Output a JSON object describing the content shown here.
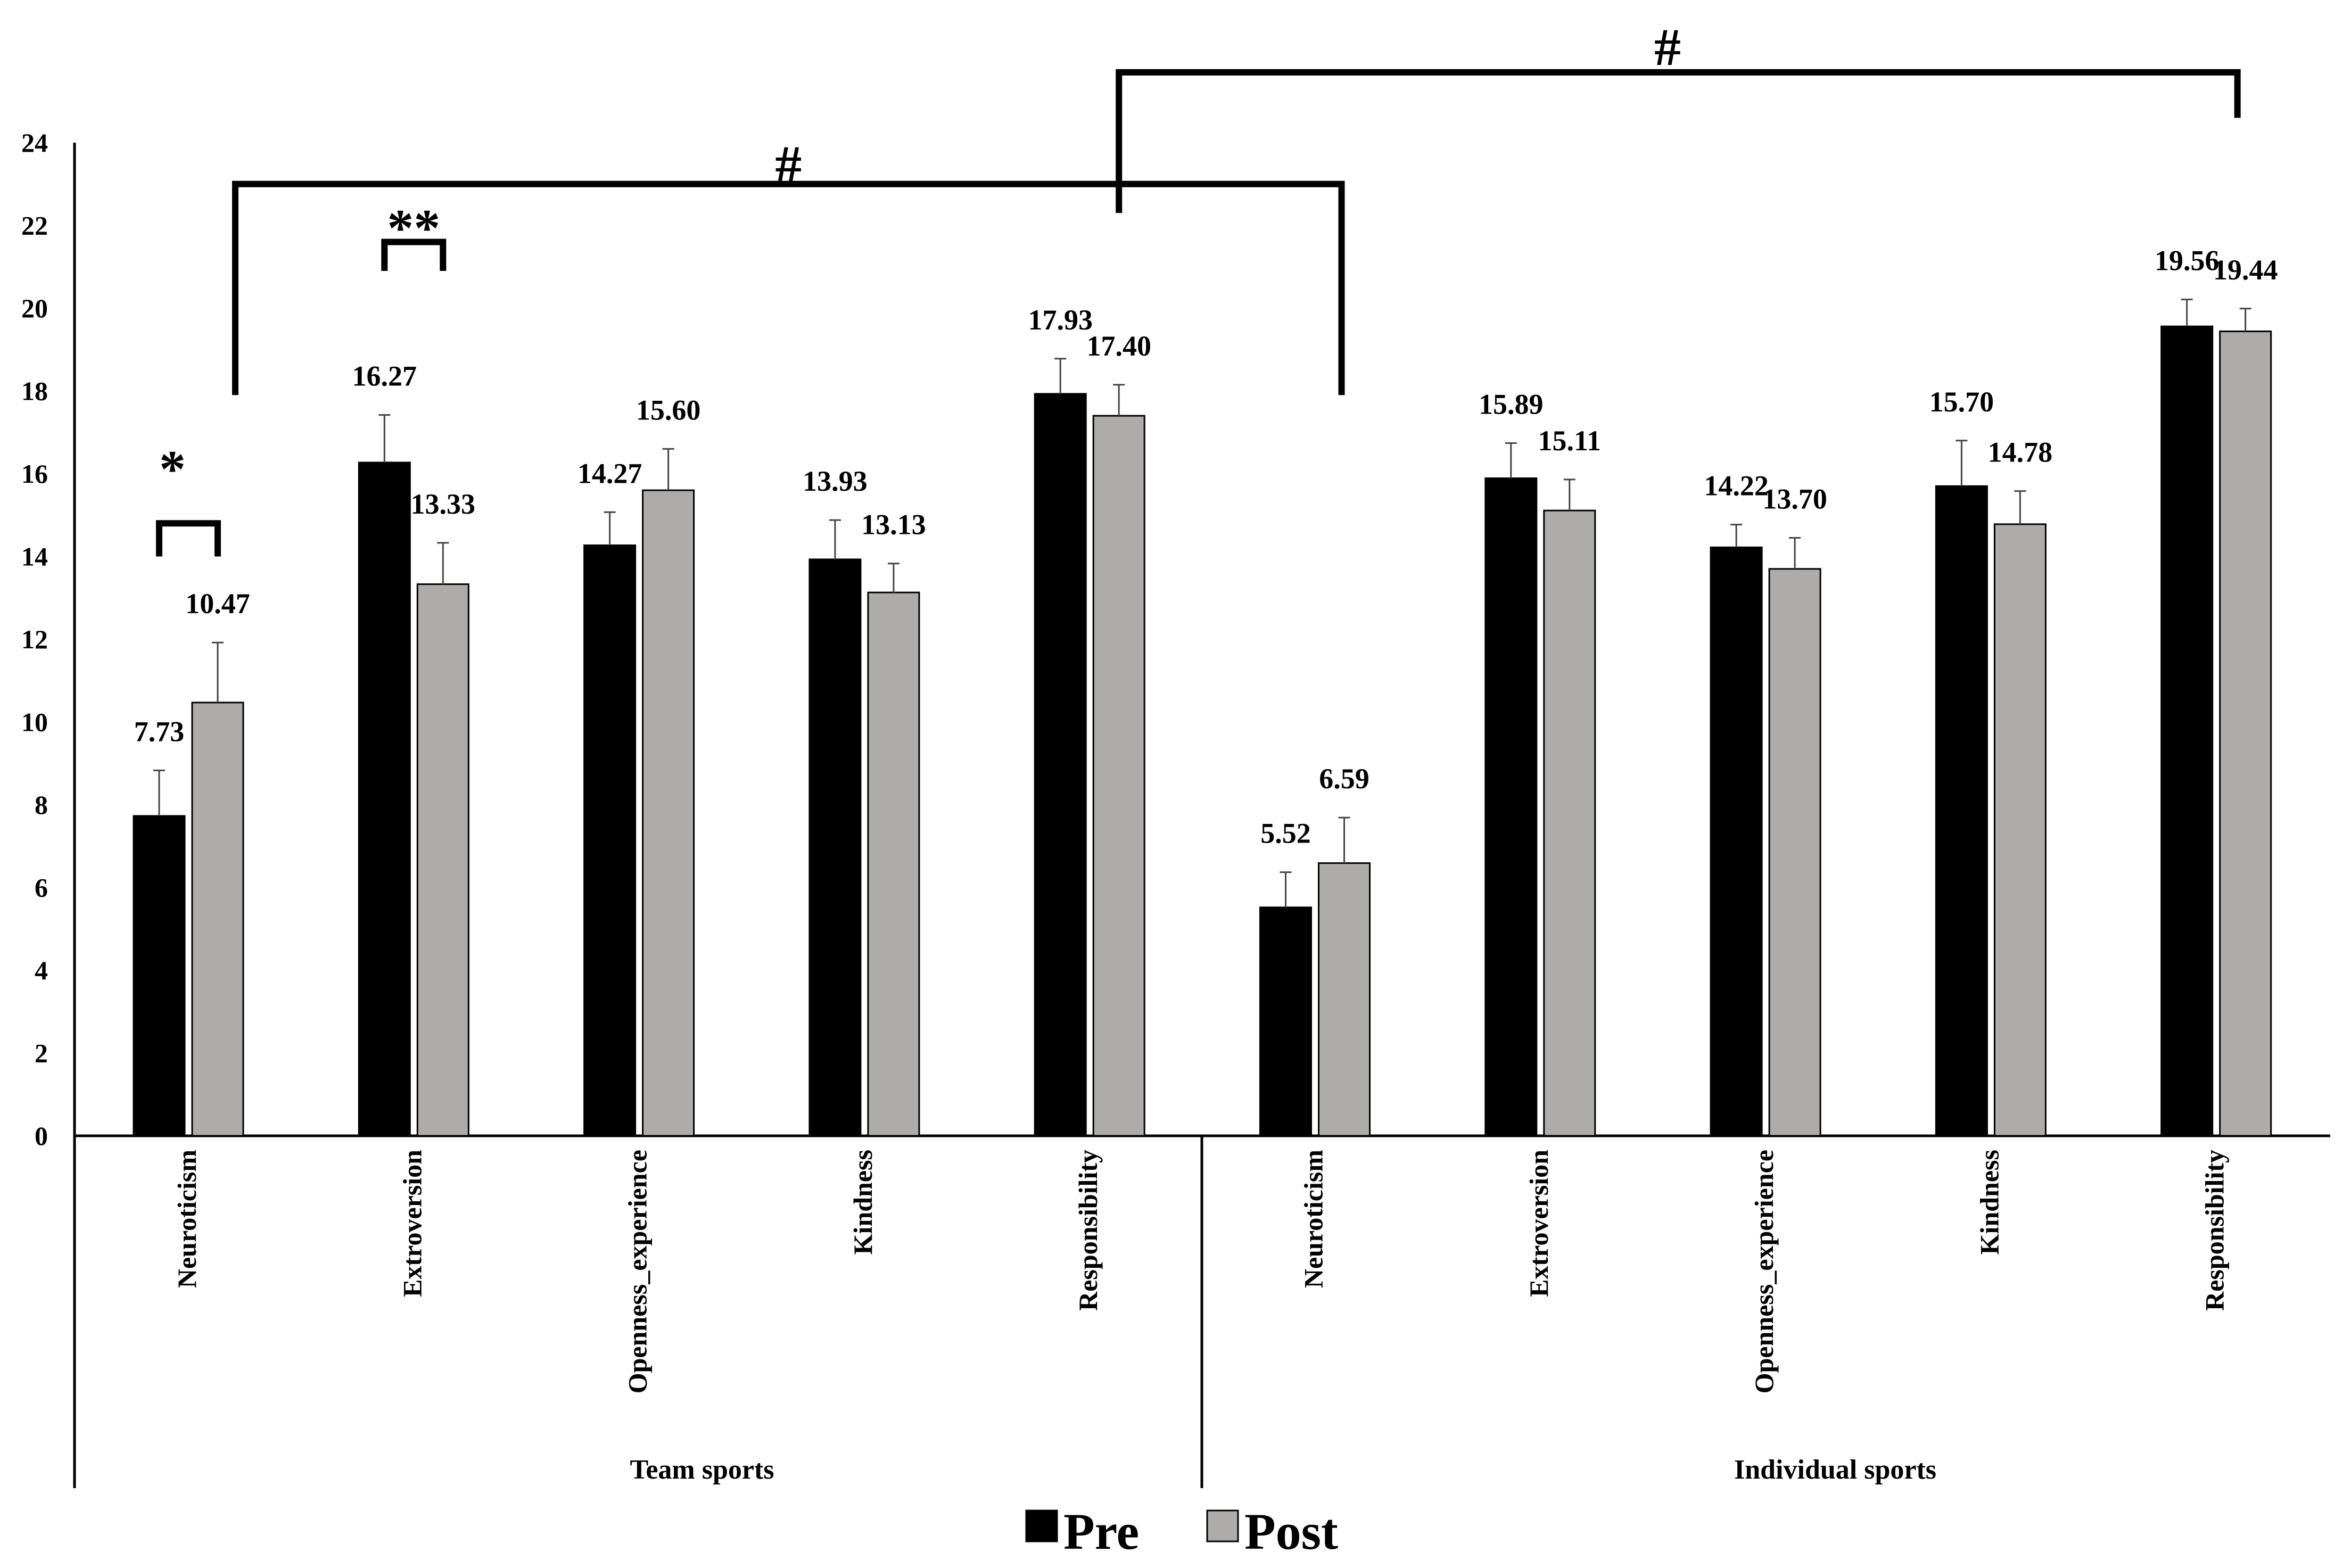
{
  "chart_data": {
    "type": "bar",
    "title": "",
    "xlabel": "",
    "ylabel": "",
    "ylim": [
      0,
      24
    ],
    "yticks": [
      0,
      2,
      4,
      6,
      8,
      10,
      12,
      14,
      16,
      18,
      20,
      22,
      24
    ],
    "grid": false,
    "legend_position": "bottom-center",
    "groups": [
      {
        "label": "Team sports",
        "categories": [
          "Neuroticism",
          "Extroversion",
          "Openness_experience",
          "Kindness",
          "Responsibility"
        ]
      },
      {
        "label": "Individual sports",
        "categories": [
          "Neuroticism",
          "Extroversion",
          "Openness_experience",
          "Kindness",
          "Responsibility"
        ]
      }
    ],
    "series": [
      {
        "name": "Pre",
        "color": "#000000",
        "values": [
          7.73,
          16.27,
          14.27,
          13.93,
          17.93,
          5.52,
          15.89,
          14.22,
          15.7,
          19.56
        ],
        "labels": [
          "7.73",
          "16.27",
          "14.27",
          "13.93",
          "17.93",
          "5.52",
          "15.89",
          "14.22",
          "15.70",
          "19.56"
        ],
        "errors": [
          1.1,
          1.15,
          0.8,
          0.95,
          0.85,
          0.85,
          0.85,
          0.55,
          1.1,
          0.65
        ]
      },
      {
        "name": "Post",
        "color": "#aeabab",
        "values": [
          10.47,
          13.33,
          15.6,
          13.13,
          17.4,
          6.59,
          15.11,
          13.7,
          14.78,
          19.44
        ],
        "labels": [
          "10.47",
          "13.33",
          "15.60",
          "13.13",
          "17.40",
          "6.59",
          "15.11",
          "13.70",
          "14.78",
          "19.44"
        ],
        "errors": [
          1.45,
          1.0,
          1.0,
          0.7,
          0.75,
          1.1,
          0.75,
          0.75,
          0.8,
          0.55
        ]
      }
    ],
    "annotations": [
      {
        "symbol": "*",
        "type": "pre-post",
        "category_index": 0
      },
      {
        "symbol": "**",
        "type": "pre-post",
        "category_index": 1
      },
      {
        "symbol": "#",
        "type": "between-categories",
        "from": 0,
        "to": 5
      },
      {
        "symbol": "#",
        "type": "between-categories",
        "from": 4,
        "to": 9
      }
    ]
  }
}
